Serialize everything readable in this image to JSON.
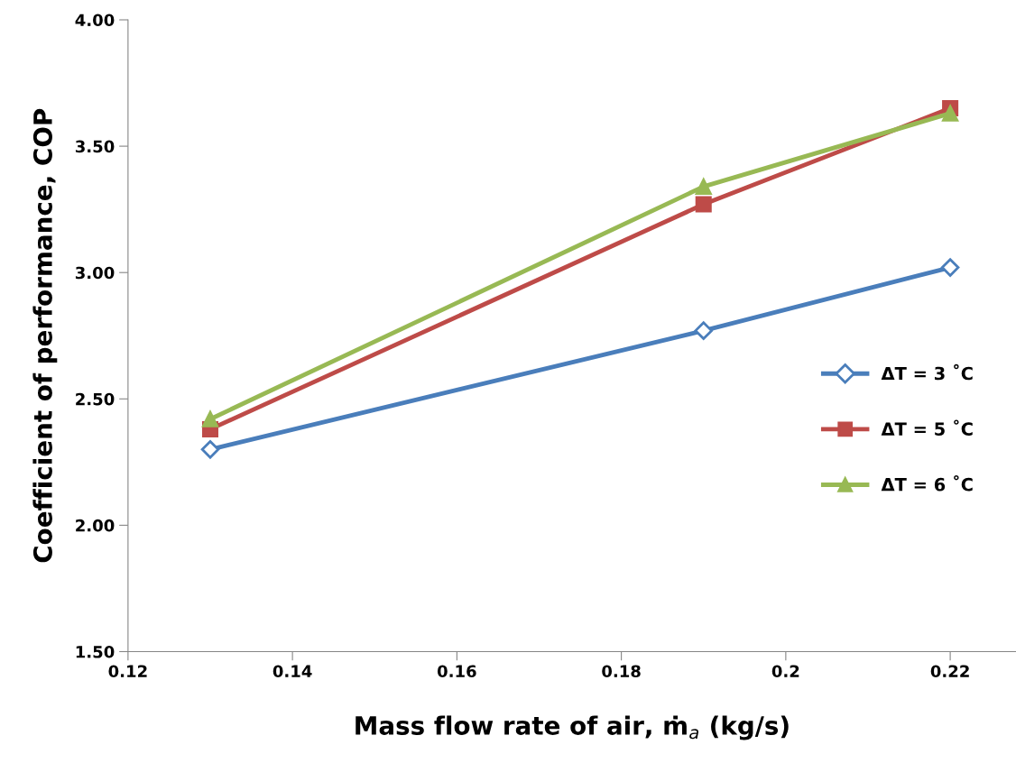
{
  "chart_data": {
    "type": "line",
    "xlabel": "Mass flow rate of air, ṁ$_{a}$ (kg/s)",
    "ylabel": "Coefficient of performance, COP",
    "x": [
      0.13,
      0.19,
      0.22
    ],
    "series": [
      {
        "name": "ΔT = 3 ˚C",
        "color": "#4a7ebb",
        "marker": "diamond",
        "values": [
          2.3,
          2.77,
          3.02
        ]
      },
      {
        "name": "ΔT = 5 ˚C",
        "color": "#be4b48",
        "marker": "square",
        "values": [
          2.38,
          3.27,
          3.65
        ]
      },
      {
        "name": "ΔT = 6 ˚C",
        "color": "#98b954",
        "marker": "triangle",
        "values": [
          2.42,
          3.34,
          3.63
        ]
      }
    ],
    "xlim": [
      0.12,
      0.228
    ],
    "xticks": [
      0.12,
      0.14,
      0.16,
      0.18,
      0.2,
      0.22
    ],
    "ylim": [
      1.5,
      4.0
    ],
    "yticks": [
      {
        "value": 1.5,
        "label": "1.50"
      },
      {
        "value": 2.0,
        "label": "2.00"
      },
      {
        "value": 2.5,
        "label": "2.50"
      },
      {
        "value": 3.0,
        "label": "3.00"
      },
      {
        "value": 3.5,
        "label": "3.50"
      },
      {
        "value": 4.0,
        "label": "4.00"
      }
    ],
    "grid": false,
    "legend": "right",
    "line_style": "solid"
  }
}
